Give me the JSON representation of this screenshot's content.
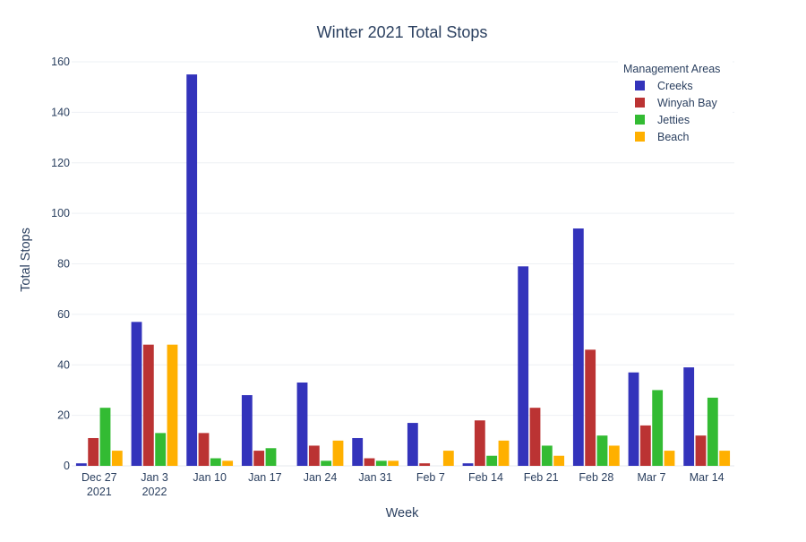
{
  "chart_data": {
    "type": "bar",
    "title": "Winter 2021 Total Stops",
    "xlabel": "Week",
    "ylabel": "Total Stops",
    "ylim": [
      0,
      160
    ],
    "yticks": [
      0,
      20,
      40,
      60,
      80,
      100,
      120,
      140,
      160
    ],
    "grid": true,
    "legend_position": "top-right",
    "legend_title": "Management Areas",
    "categories": [
      [
        "Dec 27",
        "2021"
      ],
      [
        "Jan 3",
        "2022"
      ],
      [
        "Jan 10"
      ],
      [
        "Jan 17"
      ],
      [
        "Jan 24"
      ],
      [
        "Jan 31"
      ],
      [
        "Feb 7"
      ],
      [
        "Feb 14"
      ],
      [
        "Feb 21"
      ],
      [
        "Feb 28"
      ],
      [
        "Mar 7"
      ],
      [
        "Mar 14"
      ]
    ],
    "series": [
      {
        "name": "Creeks",
        "color": "#3333bb",
        "values": [
          1,
          57,
          155,
          28,
          33,
          11,
          17,
          1,
          79,
          94,
          37,
          39
        ]
      },
      {
        "name": "Winyah Bay",
        "color": "#bb3333",
        "values": [
          11,
          48,
          13,
          6,
          8,
          3,
          1,
          18,
          23,
          46,
          16,
          12
        ]
      },
      {
        "name": "Jetties",
        "color": "#33bb33",
        "values": [
          23,
          13,
          3,
          7,
          2,
          2,
          0,
          4,
          8,
          12,
          30,
          27
        ]
      },
      {
        "name": "Beach",
        "color": "#ffb000",
        "values": [
          6,
          48,
          2,
          0,
          10,
          2,
          6,
          10,
          4,
          8,
          6,
          6
        ]
      }
    ]
  }
}
